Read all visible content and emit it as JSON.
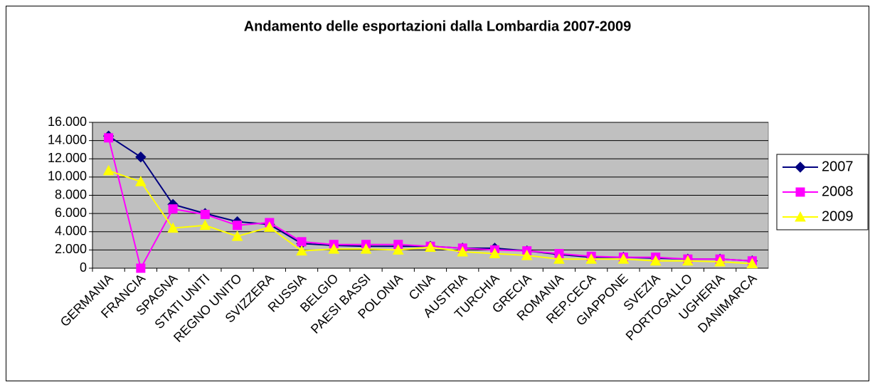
{
  "chart_data": {
    "type": "line",
    "title": "Andamento delle esportazioni dalla Lombardia 2007-2009",
    "categories": [
      "GERMANIA",
      "FRANCIA",
      "SPAGNA",
      "STATI UNITI",
      "REGNO UNITO",
      "SVIZZERA",
      "RUSSIA",
      "BELGIO",
      "PAESI BASSI",
      "POLONIA",
      "CINA",
      "AUSTRIA",
      "TURCHIA",
      "GRECIA",
      "ROMANIA",
      "REP.CECA",
      "GIAPPONE",
      "SVEZIA",
      "PORTOGALLO",
      "UGHERIA",
      "DANIMARCA"
    ],
    "series": [
      {
        "name": "2007",
        "color": "#000080",
        "marker": "diamond",
        "values": [
          14500,
          12200,
          7000,
          6000,
          5100,
          4800,
          2700,
          2500,
          2400,
          2400,
          2400,
          2200,
          2200,
          1900,
          1500,
          1200,
          1200,
          1100,
          1000,
          1000,
          800
        ]
      },
      {
        "name": "2008",
        "color": "#ff00ff",
        "marker": "square",
        "values": [
          14300,
          0,
          6500,
          5900,
          4700,
          5000,
          2900,
          2600,
          2600,
          2600,
          2400,
          2200,
          2000,
          1900,
          1600,
          1300,
          1200,
          1200,
          1000,
          1000,
          800
        ]
      },
      {
        "name": "2009",
        "color": "#ffff00",
        "marker": "triangle",
        "values": [
          10700,
          9500,
          4400,
          4700,
          3500,
          4500,
          1900,
          2100,
          2100,
          2000,
          2300,
          1800,
          1600,
          1400,
          1000,
          1000,
          1000,
          800,
          800,
          700,
          500
        ]
      }
    ],
    "ylim": [
      0,
      16000
    ],
    "yticks": [
      0,
      {
        "value": 2000,
        "label": "2.000"
      },
      {
        "value": 4000,
        "label": "4.000"
      },
      {
        "value": 6000,
        "label": "6.000"
      },
      {
        "value": 8000,
        "label": "8.000"
      },
      {
        "value": 10000,
        "label": "10.000"
      },
      {
        "value": 12000,
        "label": "12.000"
      },
      {
        "value": 14000,
        "label": "14.000"
      },
      {
        "value": 16000,
        "label": "16.000"
      }
    ],
    "grid": true,
    "plot_background": "#c0c0c0",
    "legend": "right"
  }
}
